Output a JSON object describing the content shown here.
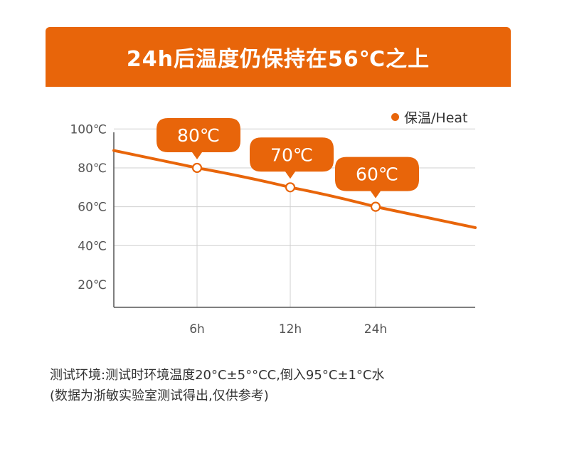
{
  "banner": {
    "title": "24h后温度仍保持在56℃之上"
  },
  "colors": {
    "accent": "#e8650a",
    "grid": "#cfcfcf",
    "axis": "#555555",
    "text": "#333333"
  },
  "chart_data": {
    "type": "line",
    "title": "24h后温度仍保持在56℃之上",
    "legend": {
      "label": "保温/Heat",
      "placement": "top-right"
    },
    "y_ticks": [
      "100℃",
      "80℃",
      "60℃",
      "40℃",
      "20℃"
    ],
    "y_tick_values": [
      100,
      80,
      60,
      40,
      20
    ],
    "ylim": [
      10,
      100
    ],
    "x_ticks": [
      "6h",
      "12h",
      "24h"
    ],
    "x_tick_values": [
      6,
      12,
      24
    ],
    "grid": true,
    "series": [
      {
        "name": "保温/Heat",
        "points": [
          {
            "x": 6,
            "y": 80,
            "label": "80℃"
          },
          {
            "x": 12,
            "y": 70,
            "label": "70℃"
          },
          {
            "x": 24,
            "y": 60,
            "label": "60℃"
          }
        ]
      }
    ]
  },
  "note": {
    "line1": "测试环境:测试时环境温度20°C±5°°CC,倒入95°C±1°C水",
    "line2": "(数据为浙敏实验室测试得出,仅供参考)"
  }
}
